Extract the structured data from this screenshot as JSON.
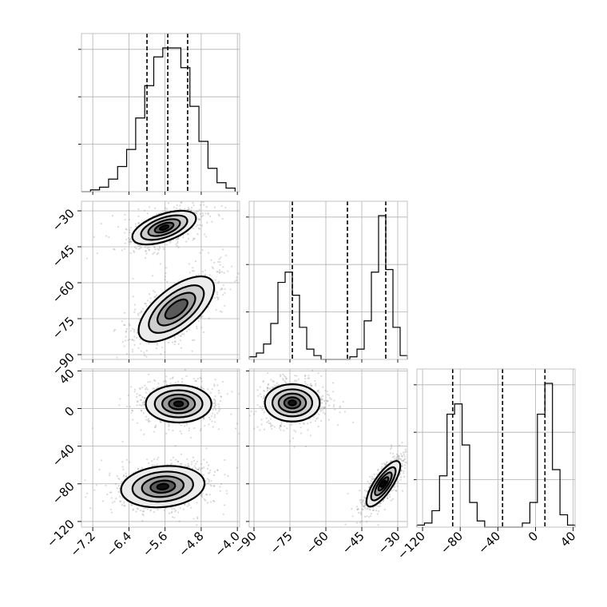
{
  "chart_data": {
    "type": "corner",
    "grid": true,
    "parameters": [
      {
        "range": [
          -7.45,
          -3.95
        ],
        "ticks": [
          "-7.2",
          "-6.4",
          "-5.6",
          "-4.8",
          "-4.0"
        ],
        "tick_values": [
          -7.2,
          -6.4,
          -5.6,
          -4.8,
          -4.0
        ]
      },
      {
        "range": [
          -92,
          -26
        ],
        "ticks": [
          "-30",
          "-45",
          "-60",
          "-75",
          "-90"
        ],
        "tick_values": [
          -30,
          -45,
          -60,
          -75,
          -90
        ]
      },
      {
        "range": [
          -126,
          42
        ],
        "ticks": [
          "-120",
          "-80",
          "-40",
          "0",
          "40"
        ],
        "tick_values": [
          -120,
          -80,
          -40,
          0,
          40
        ]
      }
    ],
    "histograms": [
      {
        "parameter": 0,
        "edges": [
          -7.45,
          -7.25,
          -7.05,
          -6.85,
          -6.65,
          -6.45,
          -6.25,
          -6.05,
          -5.85,
          -5.65,
          -5.45,
          -5.25,
          -5.05,
          -4.85,
          -4.65,
          -4.45,
          -4.25,
          -4.05
        ],
        "counts": [
          0,
          2,
          5,
          14,
          28,
          47,
          82,
          118,
          150,
          160,
          160,
          138,
          95,
          56,
          26,
          10,
          4
        ],
        "quantiles": [
          -6.0,
          -5.54,
          -5.1
        ]
      },
      {
        "parameter": 1,
        "edges": [
          -92,
          -89,
          -86,
          -83,
          -80,
          -77,
          -74,
          -71,
          -68,
          -65,
          -62,
          -59,
          -56,
          -53,
          -50,
          -47,
          -44,
          -41,
          -38,
          -35,
          -32,
          -29,
          -26
        ],
        "counts": [
          2,
          5,
          12,
          28,
          60,
          68,
          50,
          25,
          8,
          3,
          0,
          0,
          0,
          0,
          2,
          8,
          30,
          68,
          112,
          70,
          25,
          3
        ],
        "quantiles": [
          -74,
          -51,
          -35
        ]
      },
      {
        "parameter": 2,
        "edges": [
          -126,
          -118,
          -110,
          -102,
          -94,
          -86,
          -78,
          -70,
          -62,
          -54,
          -46,
          -38,
          -30,
          -22,
          -14,
          -6,
          2,
          10,
          18,
          26,
          34,
          42
        ],
        "counts": [
          1,
          2,
          8,
          25,
          55,
          60,
          40,
          12,
          3,
          0,
          0,
          0,
          0,
          0,
          2,
          12,
          55,
          70,
          28,
          6,
          1
        ],
        "quantiles": [
          -88,
          -35,
          10
        ]
      }
    ],
    "pairs": [
      {
        "x_parameter": 0,
        "y_parameter": 1,
        "modes": [
          {
            "mx": -5.62,
            "my": -37,
            "sx": 0.32,
            "sy": 3.2,
            "rho": 0.55,
            "peak": 1.0
          },
          {
            "mx": -5.35,
            "my": -71,
            "sx": 0.38,
            "sy": 6.2,
            "rho": 0.65,
            "peak": 0.62
          }
        ]
      },
      {
        "x_parameter": 0,
        "y_parameter": 2,
        "modes": [
          {
            "mx": -5.3,
            "my": 5,
            "sx": 0.33,
            "sy": 9,
            "rho": 0.0,
            "peak": 1.0
          },
          {
            "mx": -5.65,
            "my": -83,
            "sx": 0.42,
            "sy": 10,
            "rho": 0.15,
            "peak": 0.9
          }
        ]
      },
      {
        "x_parameter": 1,
        "y_parameter": 2,
        "modes": [
          {
            "mx": -74,
            "my": 6,
            "sx": 5.2,
            "sy": 9,
            "rho": 0.0,
            "peak": 0.85
          },
          {
            "mx": -36,
            "my": -80,
            "sx": 3.2,
            "sy": 11,
            "rho": 0.78,
            "peak": 1.0
          }
        ]
      }
    ]
  }
}
